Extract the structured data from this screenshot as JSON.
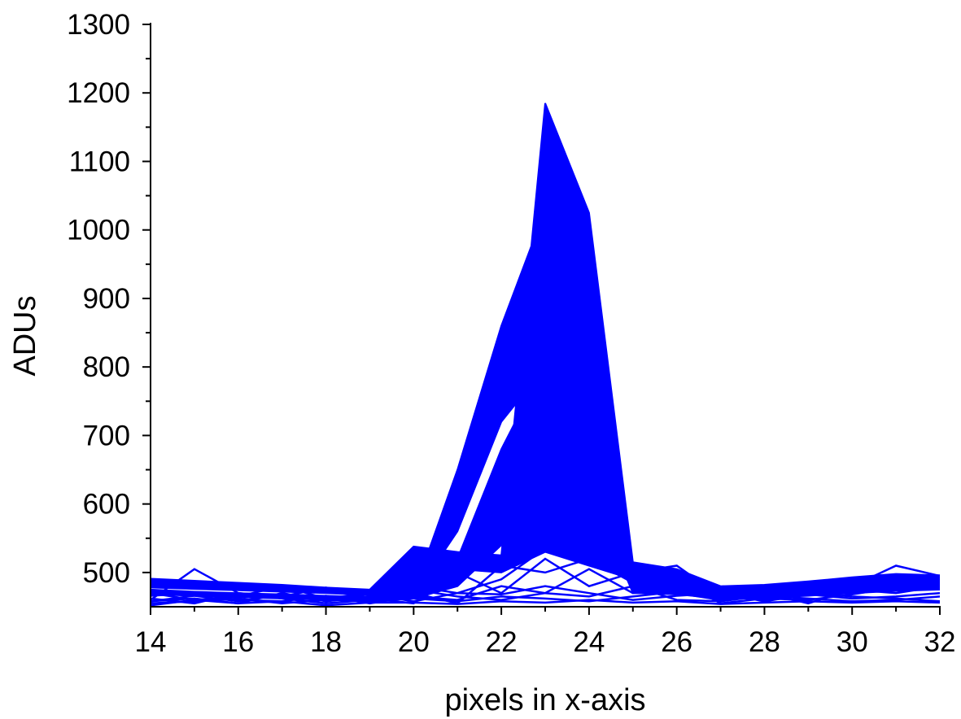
{
  "chart_data": {
    "type": "line",
    "title": "",
    "xlabel": "pixels in x-axis",
    "ylabel": "ADUs",
    "xlim": [
      14,
      32
    ],
    "ylim": [
      450,
      1300
    ],
    "x_ticks": [
      14,
      16,
      18,
      20,
      22,
      24,
      26,
      28,
      30,
      32
    ],
    "y_ticks": [
      500,
      600,
      700,
      800,
      900,
      1000,
      1100,
      1200,
      1300
    ],
    "grid": false,
    "legend": "none",
    "line_color": "#0000ff",
    "fill_color": "#0000ff",
    "x": [
      14,
      15,
      16,
      17,
      18,
      19,
      20,
      21,
      22,
      23,
      24,
      25,
      26,
      27,
      28,
      29,
      30,
      31,
      32
    ],
    "bands": [
      {
        "upper": [
          491,
          488,
          485,
          482,
          478,
          475,
          538,
          530,
          525,
          1185,
          1025,
          515,
          505,
          480,
          482,
          487,
          493,
          498,
          496
        ],
        "lower": [
          483,
          480,
          478,
          475,
          472,
          468,
          470,
          505,
          500,
          530,
          510,
          490,
          480,
          472,
          475,
          480,
          486,
          491,
          490
        ]
      },
      {
        "upper": [
          484,
          482,
          480,
          478,
          475,
          472,
          470,
          650,
          860,
          1030,
          800,
          500,
          490,
          478,
          480,
          484,
          488,
          493,
          493
        ],
        "lower": [
          478,
          476,
          474,
          472,
          470,
          467,
          465,
          560,
          720,
          800,
          620,
          480,
          470,
          465,
          468,
          472,
          476,
          480,
          482
        ]
      },
      {
        "upper": [
          475,
          472,
          470,
          468,
          466,
          464,
          475,
          520,
          680,
          805,
          765,
          510,
          480,
          470,
          470,
          475,
          480,
          485,
          485
        ],
        "lower": [
          468,
          466,
          464,
          462,
          460,
          458,
          462,
          480,
          540,
          635,
          622,
          470,
          468,
          462,
          463,
          466,
          470,
          473,
          475
        ]
      }
    ],
    "noise_series": [
      {
        "values": [
          460,
          505,
          470,
          465,
          478,
          462,
          455,
          500,
          470,
          520,
          480,
          500,
          510,
          465,
          460,
          486,
          470,
          495,
          490
        ]
      },
      {
        "values": [
          470,
          460,
          465,
          480,
          462,
          470,
          480,
          470,
          490,
          535,
          540,
          495,
          470,
          460,
          465,
          470,
          480,
          510,
          495
        ]
      },
      {
        "values": [
          458,
          462,
          455,
          470,
          458,
          465,
          470,
          455,
          510,
          500,
          520,
          485,
          490,
          455,
          462,
          460,
          468,
          478,
          482
        ]
      },
      {
        "values": [
          466,
          470,
          460,
          458,
          466,
          455,
          465,
          460,
          480,
          470,
          505,
          470,
          475,
          462,
          470,
          455,
          475,
          470,
          480
        ]
      },
      {
        "values": [
          455,
          458,
          462,
          455,
          460,
          468,
          458,
          470,
          468,
          480,
          470,
          460,
          466,
          470,
          458,
          468,
          462,
          465,
          470
        ]
      },
      {
        "values": [
          462,
          455,
          470,
          462,
          455,
          460,
          475,
          465,
          460,
          470,
          465,
          480,
          460,
          458,
          466,
          462,
          458,
          460,
          465
        ]
      },
      {
        "values": [
          458,
          466,
          458,
          468,
          462,
          458,
          462,
          458,
          465,
          462,
          458,
          465,
          472,
          466,
          460,
          470,
          465,
          462,
          458
        ]
      },
      {
        "values": [
          452,
          460,
          455,
          458,
          452,
          456,
          456,
          454,
          458,
          456,
          460,
          456,
          458,
          454,
          456,
          458,
          456,
          458,
          456
        ]
      }
    ]
  }
}
